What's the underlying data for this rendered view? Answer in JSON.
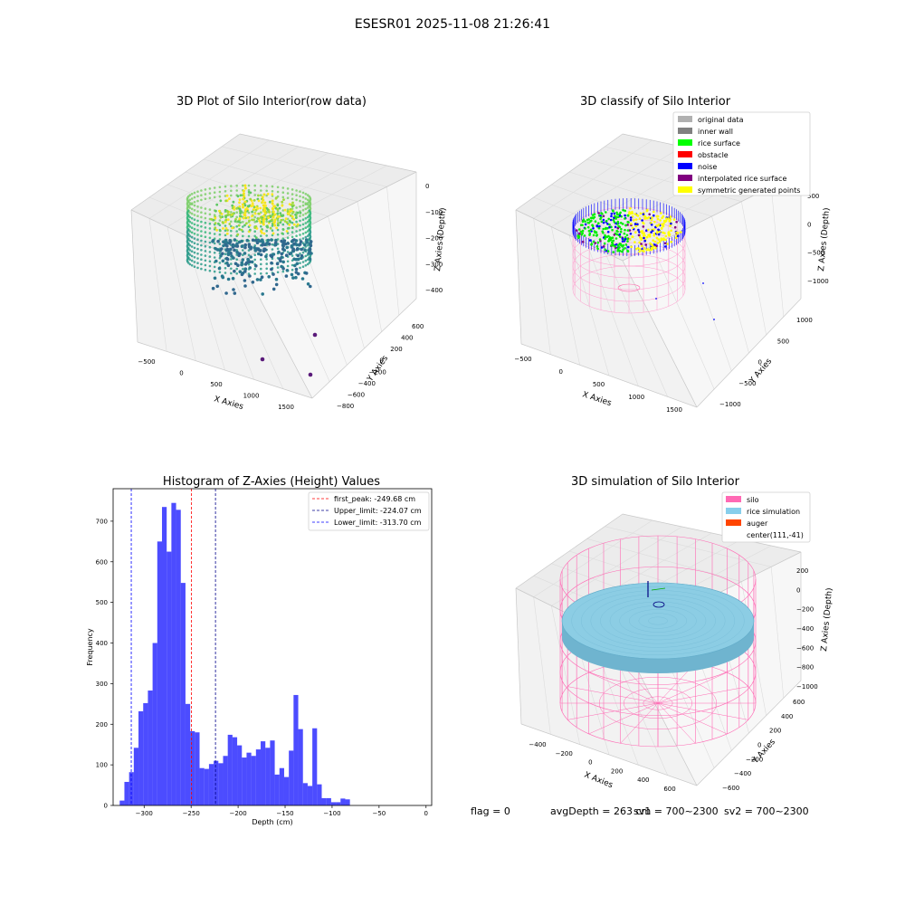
{
  "figure": {
    "suptitle": "ESESR01 2025-11-08 21:26:41"
  },
  "footer": {
    "flag": "flag = 0",
    "avg": "avgDepth = 263 cm",
    "sv1": "sv1 = 700~2300",
    "sv2": "sv2 = 700~2300"
  },
  "chart_data": [
    {
      "type": "scatter3d",
      "title": "3D Plot of Silo Interior(row data)",
      "xlabel": "X Axies",
      "ylabel": "Y Axies",
      "zlabel": "Z Axies (Depth)",
      "xticks": [
        -500,
        0,
        500,
        1000,
        1500
      ],
      "yticks": [
        600,
        400,
        200,
        0,
        -200,
        -400,
        -600,
        -800
      ],
      "zticks": [
        0,
        -100,
        -200,
        -300,
        -400
      ],
      "colormap": "viridis",
      "outliers": [
        {
          "x": 1100,
          "y": -300,
          "z": -450
        },
        {
          "x": 1450,
          "y": -450,
          "z": -420
        },
        {
          "x": 1500,
          "y": 250,
          "z": -300
        }
      ]
    },
    {
      "type": "scatter3d",
      "title": "3D classify of Silo Interior",
      "xlabel": "X Axies",
      "ylabel": "Y Axies",
      "zlabel": "Z Axies (Depth)",
      "xticks": [
        -500,
        0,
        500,
        1000,
        1500
      ],
      "yticks": [
        1000,
        500,
        0,
        -500,
        -1000
      ],
      "zticks": [
        500,
        0,
        -500,
        -1000
      ],
      "legend_position": "top-right",
      "legend": [
        {
          "label": "original data",
          "color": "#b0b0b0"
        },
        {
          "label": "inner wall",
          "color": "#808080"
        },
        {
          "label": "rice surface",
          "color": "#00ff00"
        },
        {
          "label": "obstacle",
          "color": "#ff0000"
        },
        {
          "label": "noise",
          "color": "#0000ff"
        },
        {
          "label": "interpolated rice surface",
          "color": "#800080"
        },
        {
          "label": "symmetric generated points",
          "color": "#ffff00"
        }
      ]
    },
    {
      "type": "bar",
      "title": "Histogram of Z-Axies (Height) Values",
      "xlabel": "Depth (cm)",
      "ylabel": "Frequency",
      "xlim": [
        -333,
        6
      ],
      "ylim": [
        0,
        780
      ],
      "xticks": [
        -300,
        -250,
        -200,
        -150,
        -100,
        -50,
        0
      ],
      "yticks": [
        0,
        100,
        200,
        300,
        400,
        500,
        600,
        700
      ],
      "bin_start": -326,
      "bin_width": 5,
      "values": [
        12,
        58,
        82,
        142,
        232,
        252,
        283,
        400,
        650,
        735,
        625,
        745,
        728,
        548,
        250,
        183,
        180,
        92,
        90,
        102,
        110,
        104,
        122,
        174,
        168,
        148,
        118,
        130,
        122,
        138,
        158,
        142,
        160,
        76,
        92,
        70,
        135,
        272,
        188,
        55,
        48,
        190,
        52,
        18,
        18,
        8,
        8,
        17,
        15
      ],
      "color": "#0000ff",
      "vlines": [
        {
          "label": "first_peak: -249.68 cm",
          "x": -249.68,
          "color": "#ff0000"
        },
        {
          "label": "Upper_limit: -224.07 cm",
          "x": -224.07,
          "color": "#00008b"
        },
        {
          "label": "Lower_limit: -313.70 cm",
          "x": -313.7,
          "color": "#0000ff"
        }
      ]
    },
    {
      "type": "surface3d",
      "title": "3D simulation of Silo Interior",
      "xlabel": "X Axies",
      "ylabel": "Y Axies",
      "zlabel": "Z Axies (Depth)",
      "xticks": [
        -400,
        -200,
        0,
        200,
        400,
        600
      ],
      "yticks": [
        600,
        400,
        200,
        0,
        -200,
        -400,
        -600
      ],
      "zticks": [
        200,
        0,
        -200,
        -400,
        -600,
        -800,
        -1000
      ],
      "legend_position": "top-right",
      "legend": [
        {
          "label": "silo",
          "color": "#ff69b4"
        },
        {
          "label": "rice simulation",
          "color": "#87ceeb"
        },
        {
          "label": "auger",
          "color": "#ff4500"
        },
        {
          "label": "center(111,-41)",
          "color": ""
        }
      ]
    }
  ]
}
